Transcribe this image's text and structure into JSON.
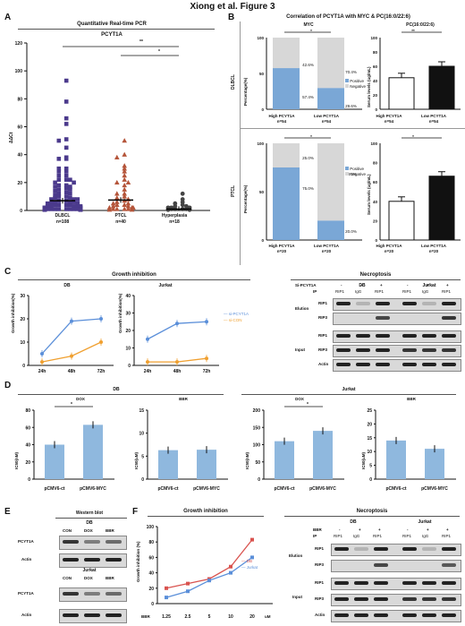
{
  "figure_title": "Xiong et al.  Figure 3",
  "panels": {
    "A": "A",
    "B": "B",
    "C": "C",
    "D": "D",
    "E": "E",
    "F": "F"
  },
  "panelA": {
    "section_title": "Quantitative Real-time PCR",
    "gene": "PCYT1A",
    "ylabel": "ΔΔCt",
    "sig1": "**",
    "sig2": "*",
    "groups": [
      {
        "name": "DLBCL",
        "n": "n=108"
      },
      {
        "name": "PTCL",
        "n": "n=40"
      },
      {
        "name": "Hyperplasia",
        "n": "n=18"
      }
    ]
  },
  "panelB": {
    "section_title": "Correlation of PCYT1A with MYC & PC(16:0/22:6)",
    "col1": "MYC",
    "col2": "PC(16:0/22:6)",
    "row1": "DLBCL",
    "row2": "PTCL",
    "ylab_pct": "Percentage(%)",
    "ylab_serum": "Serum levels (ug/mL)",
    "legend_pos": "Positive",
    "legend_neg": "Negative",
    "high": "High PCYT1A",
    "low": "Low PCYT1A",
    "n54": "n=54",
    "n20": "n=20",
    "sig_star": "*",
    "sig_double": "**",
    "dl_high_pos": "57.4%",
    "dl_high_neg": "42.6%",
    "dl_low_pos": "29.6%",
    "dl_low_neg": "70.4%",
    "pt_high_pos": "75.0%",
    "pt_high_neg": "25.0%",
    "pt_low_pos": "20.0%",
    "pt_low_neg": "80.0%"
  },
  "panelC": {
    "growth_title": "Growth inhibition",
    "necro_title": "Necroptosis",
    "db": "DB",
    "jurkat": "Jurkat",
    "ylabel": "Growth inhibition(%)",
    "legend1": "si-PCYT1A",
    "legend2": "si-CON",
    "times": [
      "24h",
      "48h",
      "72h"
    ],
    "si_label": "Si-PCYT1A",
    "ip": "IP",
    "elution": "Elution",
    "input": "Input",
    "rip1": "RIP1",
    "rip3": "RIP3",
    "actin": "Actin",
    "igg": "IgG",
    "minus": "-",
    "plus": "+"
  },
  "panelD": {
    "db": "DB",
    "jurkat": "Jurkat",
    "dox": "DOX",
    "bbr": "BBR",
    "ylabel": "IC50(nM)",
    "ylabel2": "IC50(uM)",
    "x1": "pCMV6-ct",
    "x2": "pCMV6-MYC",
    "star": "*"
  },
  "panelE": {
    "title": "Western blot",
    "db": "DB",
    "jurkat": "Jurkat",
    "lanes": [
      "CON",
      "DOX",
      "BBR"
    ],
    "pcyt": "PCYT1A",
    "actin": "Actin"
  },
  "panelF": {
    "growth_title": "Growth inhibition",
    "necro_title": "Necroptosis",
    "db": "DB",
    "jurkat": "Jurkat",
    "ylabel": "Growth inhibition (%)",
    "bbr": "BBR",
    "unit": "uM",
    "ip": "IP",
    "igg": "IgG",
    "elution": "Elution",
    "input": "Input",
    "rip1": "RIP1",
    "rip3": "RIP3",
    "actin": "Actin",
    "minus": "-",
    "plus": "+"
  },
  "chart_data": [
    {
      "type": "scatter",
      "panel": "A",
      "title": "PCYT1A",
      "ylabel": "ΔΔCt",
      "ylim": [
        0,
        120
      ],
      "categories": [
        "DLBCL",
        "PTCL",
        "Hyperplasia"
      ],
      "means": [
        7,
        7.5,
        1
      ],
      "colors": {
        "DLBCL": "#4b3a8c",
        "PTCL": "#b5553a",
        "Hyperplasia": "#444444"
      }
    },
    {
      "type": "bar",
      "panel": "B",
      "title": "MYC",
      "stacked": true,
      "categories": [
        "High PCYT1A",
        "Low PCYT1A"
      ],
      "series": [
        {
          "name": "Positive",
          "dlbcl": [
            57.4,
            29.6
          ],
          "ptcl": [
            75.0,
            20.0
          ]
        },
        {
          "name": "Negative",
          "dlbcl": [
            42.6,
            70.4
          ],
          "ptcl": [
            25.0,
            80.0
          ]
        }
      ],
      "ylim": [
        0,
        100
      ]
    },
    {
      "type": "bar",
      "panel": "B",
      "title": "PC(16:0/22:6)",
      "categories": [
        "High PCYT1A",
        "Low PCYT1A"
      ],
      "dlbcl": [
        44,
        60
      ],
      "ptcl": [
        40,
        66
      ],
      "ylim": [
        0,
        100
      ]
    },
    {
      "type": "line",
      "panel": "C",
      "x": [
        "24h",
        "48h",
        "72h"
      ],
      "db": {
        "ylim": [
          0,
          30
        ],
        "si-PCYT1A": [
          5,
          19,
          20
        ],
        "si-CON": [
          1.5,
          4,
          10
        ]
      },
      "jurkat": {
        "ylim": [
          0,
          40
        ],
        "si-PCYT1A": [
          15,
          24,
          25
        ],
        "si-CON": [
          2,
          2,
          4
        ]
      }
    },
    {
      "type": "bar",
      "panel": "D",
      "categories": [
        "pCMV6-ct",
        "pCMV6-MYC"
      ],
      "db_dox": {
        "values": [
          40,
          63
        ],
        "ylim": [
          0,
          80
        ]
      },
      "db_bbr": {
        "values": [
          6.3,
          6.4
        ],
        "ylim": [
          0,
          15
        ]
      },
      "jurkat_dox": {
        "values": [
          110,
          140
        ],
        "ylim": [
          0,
          200
        ]
      },
      "jurkat_bbr": {
        "values": [
          14,
          11
        ],
        "ylim": [
          0,
          25
        ]
      }
    },
    {
      "type": "line",
      "panel": "F",
      "x": [
        "1.25",
        "2.5",
        "5",
        "10",
        "20"
      ],
      "ylim": [
        0,
        100
      ],
      "series": [
        {
          "name": "DB",
          "values": [
            20,
            26,
            32,
            48,
            83
          ],
          "color": "#d9534f"
        },
        {
          "name": "Jurkat",
          "values": [
            8,
            16,
            30,
            40,
            60
          ],
          "color": "#5b8fd9"
        }
      ]
    }
  ]
}
